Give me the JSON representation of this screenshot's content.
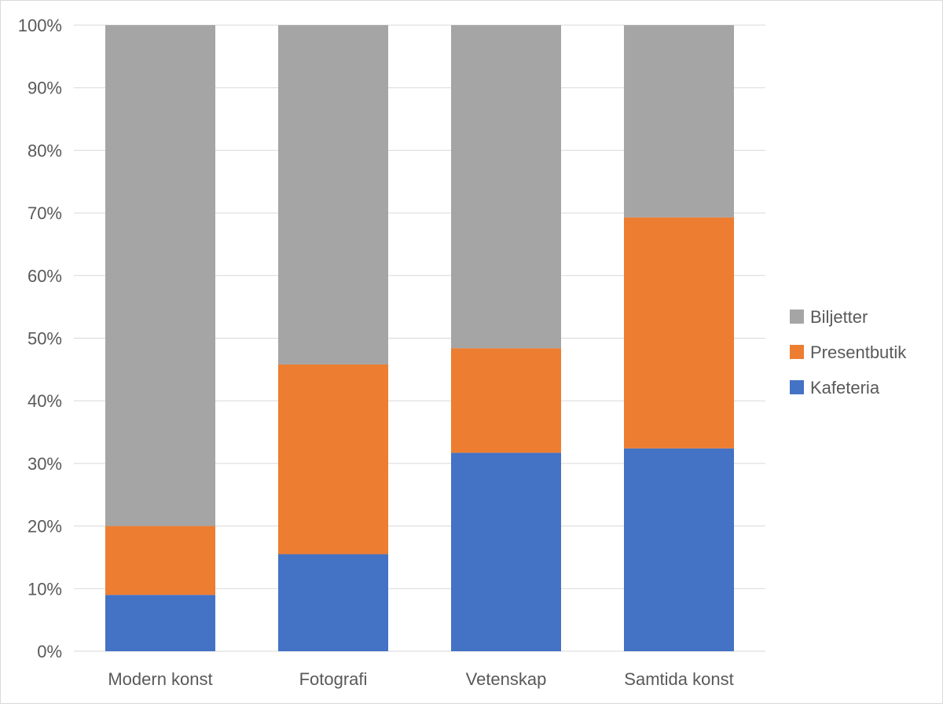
{
  "chart_data": {
    "type": "bar",
    "stacked": "percent",
    "categories": [
      "Modern konst",
      "Fotografi",
      "Vetenskap",
      "Samtida konst"
    ],
    "series": [
      {
        "name": "Kafeteria",
        "color": "#4472c4",
        "values": [
          9,
          15.5,
          31.7,
          32.4
        ]
      },
      {
        "name": "Presentbutik",
        "color": "#ed7d31",
        "values": [
          11,
          30.3,
          16.7,
          36.9
        ]
      },
      {
        "name": "Biljetter",
        "color": "#a5a5a5",
        "values": [
          80,
          54.2,
          51.6,
          30.7
        ]
      }
    ],
    "y_ticks": [
      "0%",
      "10%",
      "20%",
      "30%",
      "40%",
      "50%",
      "60%",
      "70%",
      "80%",
      "90%",
      "100%"
    ],
    "ylim": [
      0,
      100
    ],
    "grid": true,
    "legend_position": "right",
    "legend_order": [
      "Biljetter",
      "Presentbutik",
      "Kafeteria"
    ],
    "gridline_color": "#d9d9d9"
  }
}
